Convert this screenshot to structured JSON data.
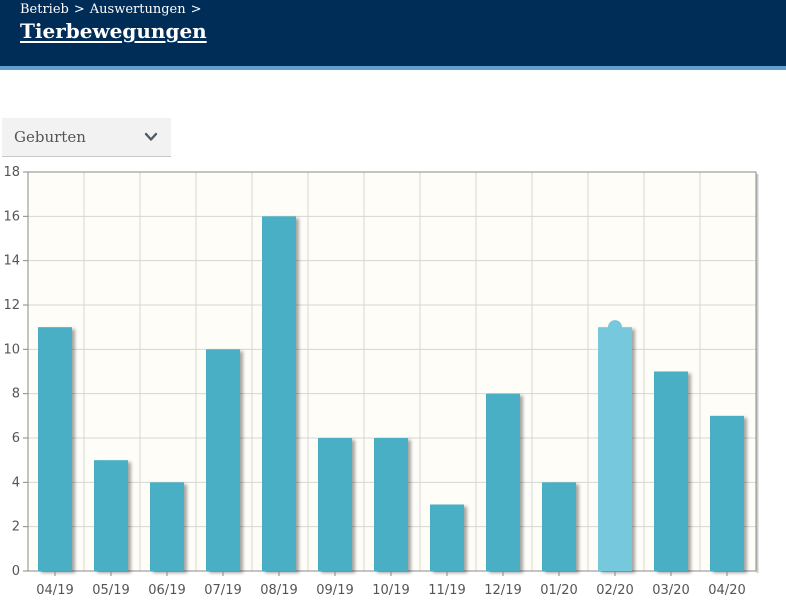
{
  "header": {
    "breadcrumb": [
      "Betrieb",
      ">",
      "Auswertungen",
      ">"
    ],
    "title": "Tierbewegungen"
  },
  "filter": {
    "selected": "Geburten",
    "icon": "chevron-down-icon"
  },
  "colors": {
    "header_bg": "#002d58",
    "bar": "#4aafc4",
    "bar_highlight": "#76c9dc",
    "plot_bg": "#fffdf7"
  },
  "chart_data": {
    "type": "bar",
    "categories": [
      "04/19",
      "05/19",
      "06/19",
      "07/19",
      "08/19",
      "09/19",
      "10/19",
      "11/19",
      "12/19",
      "01/20",
      "02/20",
      "03/20",
      "04/20"
    ],
    "values": [
      11,
      5,
      4,
      10,
      16,
      6,
      6,
      3,
      8,
      4,
      11,
      9,
      7
    ],
    "highlighted_index": 10,
    "ylim": [
      0,
      18
    ],
    "yticks": [
      0,
      2,
      4,
      6,
      8,
      10,
      12,
      14,
      16,
      18
    ],
    "grid": true,
    "title": "",
    "xlabel": "",
    "ylabel": ""
  }
}
